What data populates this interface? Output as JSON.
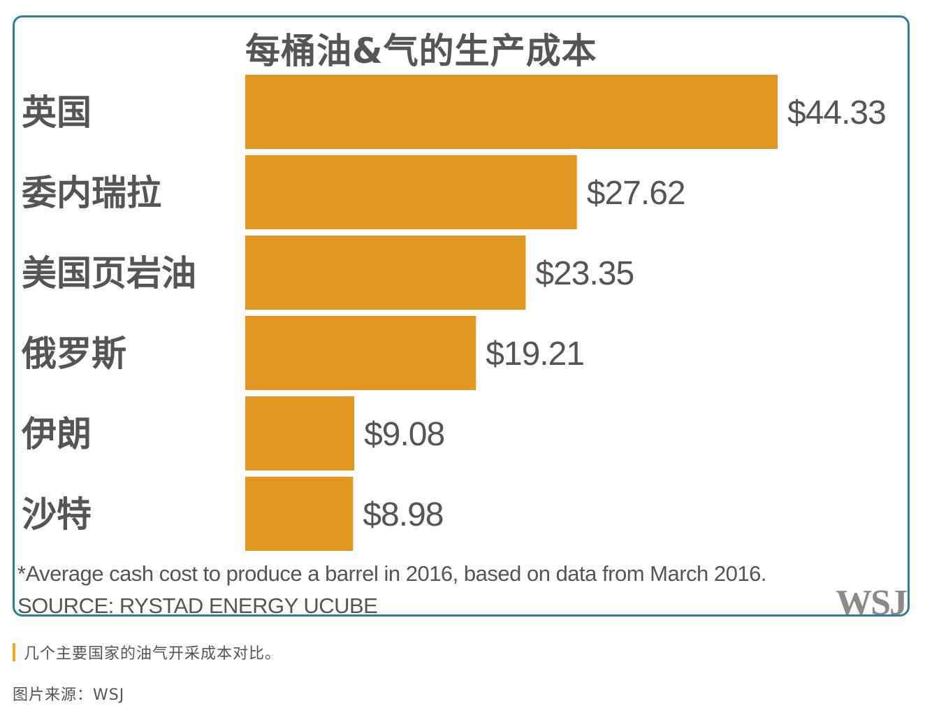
{
  "chart_data": {
    "type": "bar",
    "orientation": "horizontal",
    "title": "每桶油&气的生产成本",
    "categories": [
      "英国",
      "委内瑞拉",
      "美国页岩油",
      "俄罗斯",
      "伊朗",
      "沙特"
    ],
    "values": [
      44.33,
      27.62,
      23.35,
      19.21,
      9.08,
      8.98
    ],
    "value_labels": [
      "$44.33",
      "$27.62",
      "$23.35",
      "$19.21",
      "$9.08",
      "$8.98"
    ],
    "bar_color": "#e39720",
    "xlim": [
      0,
      44.33
    ],
    "grid": false,
    "footnote": "*Average cash cost to produce a barrel in 2016, based on data from March 2016.",
    "source": "SOURCE: RYSTAD ENERGY UCUBE",
    "logo": "WSJ"
  },
  "caption": "几个主要国家的油气开采成本对比。",
  "image_credit": "图片来源：WSJ",
  "colors": {
    "border": "#2d7f9d",
    "caption_accent": "#f5a623",
    "text": "#555555"
  }
}
